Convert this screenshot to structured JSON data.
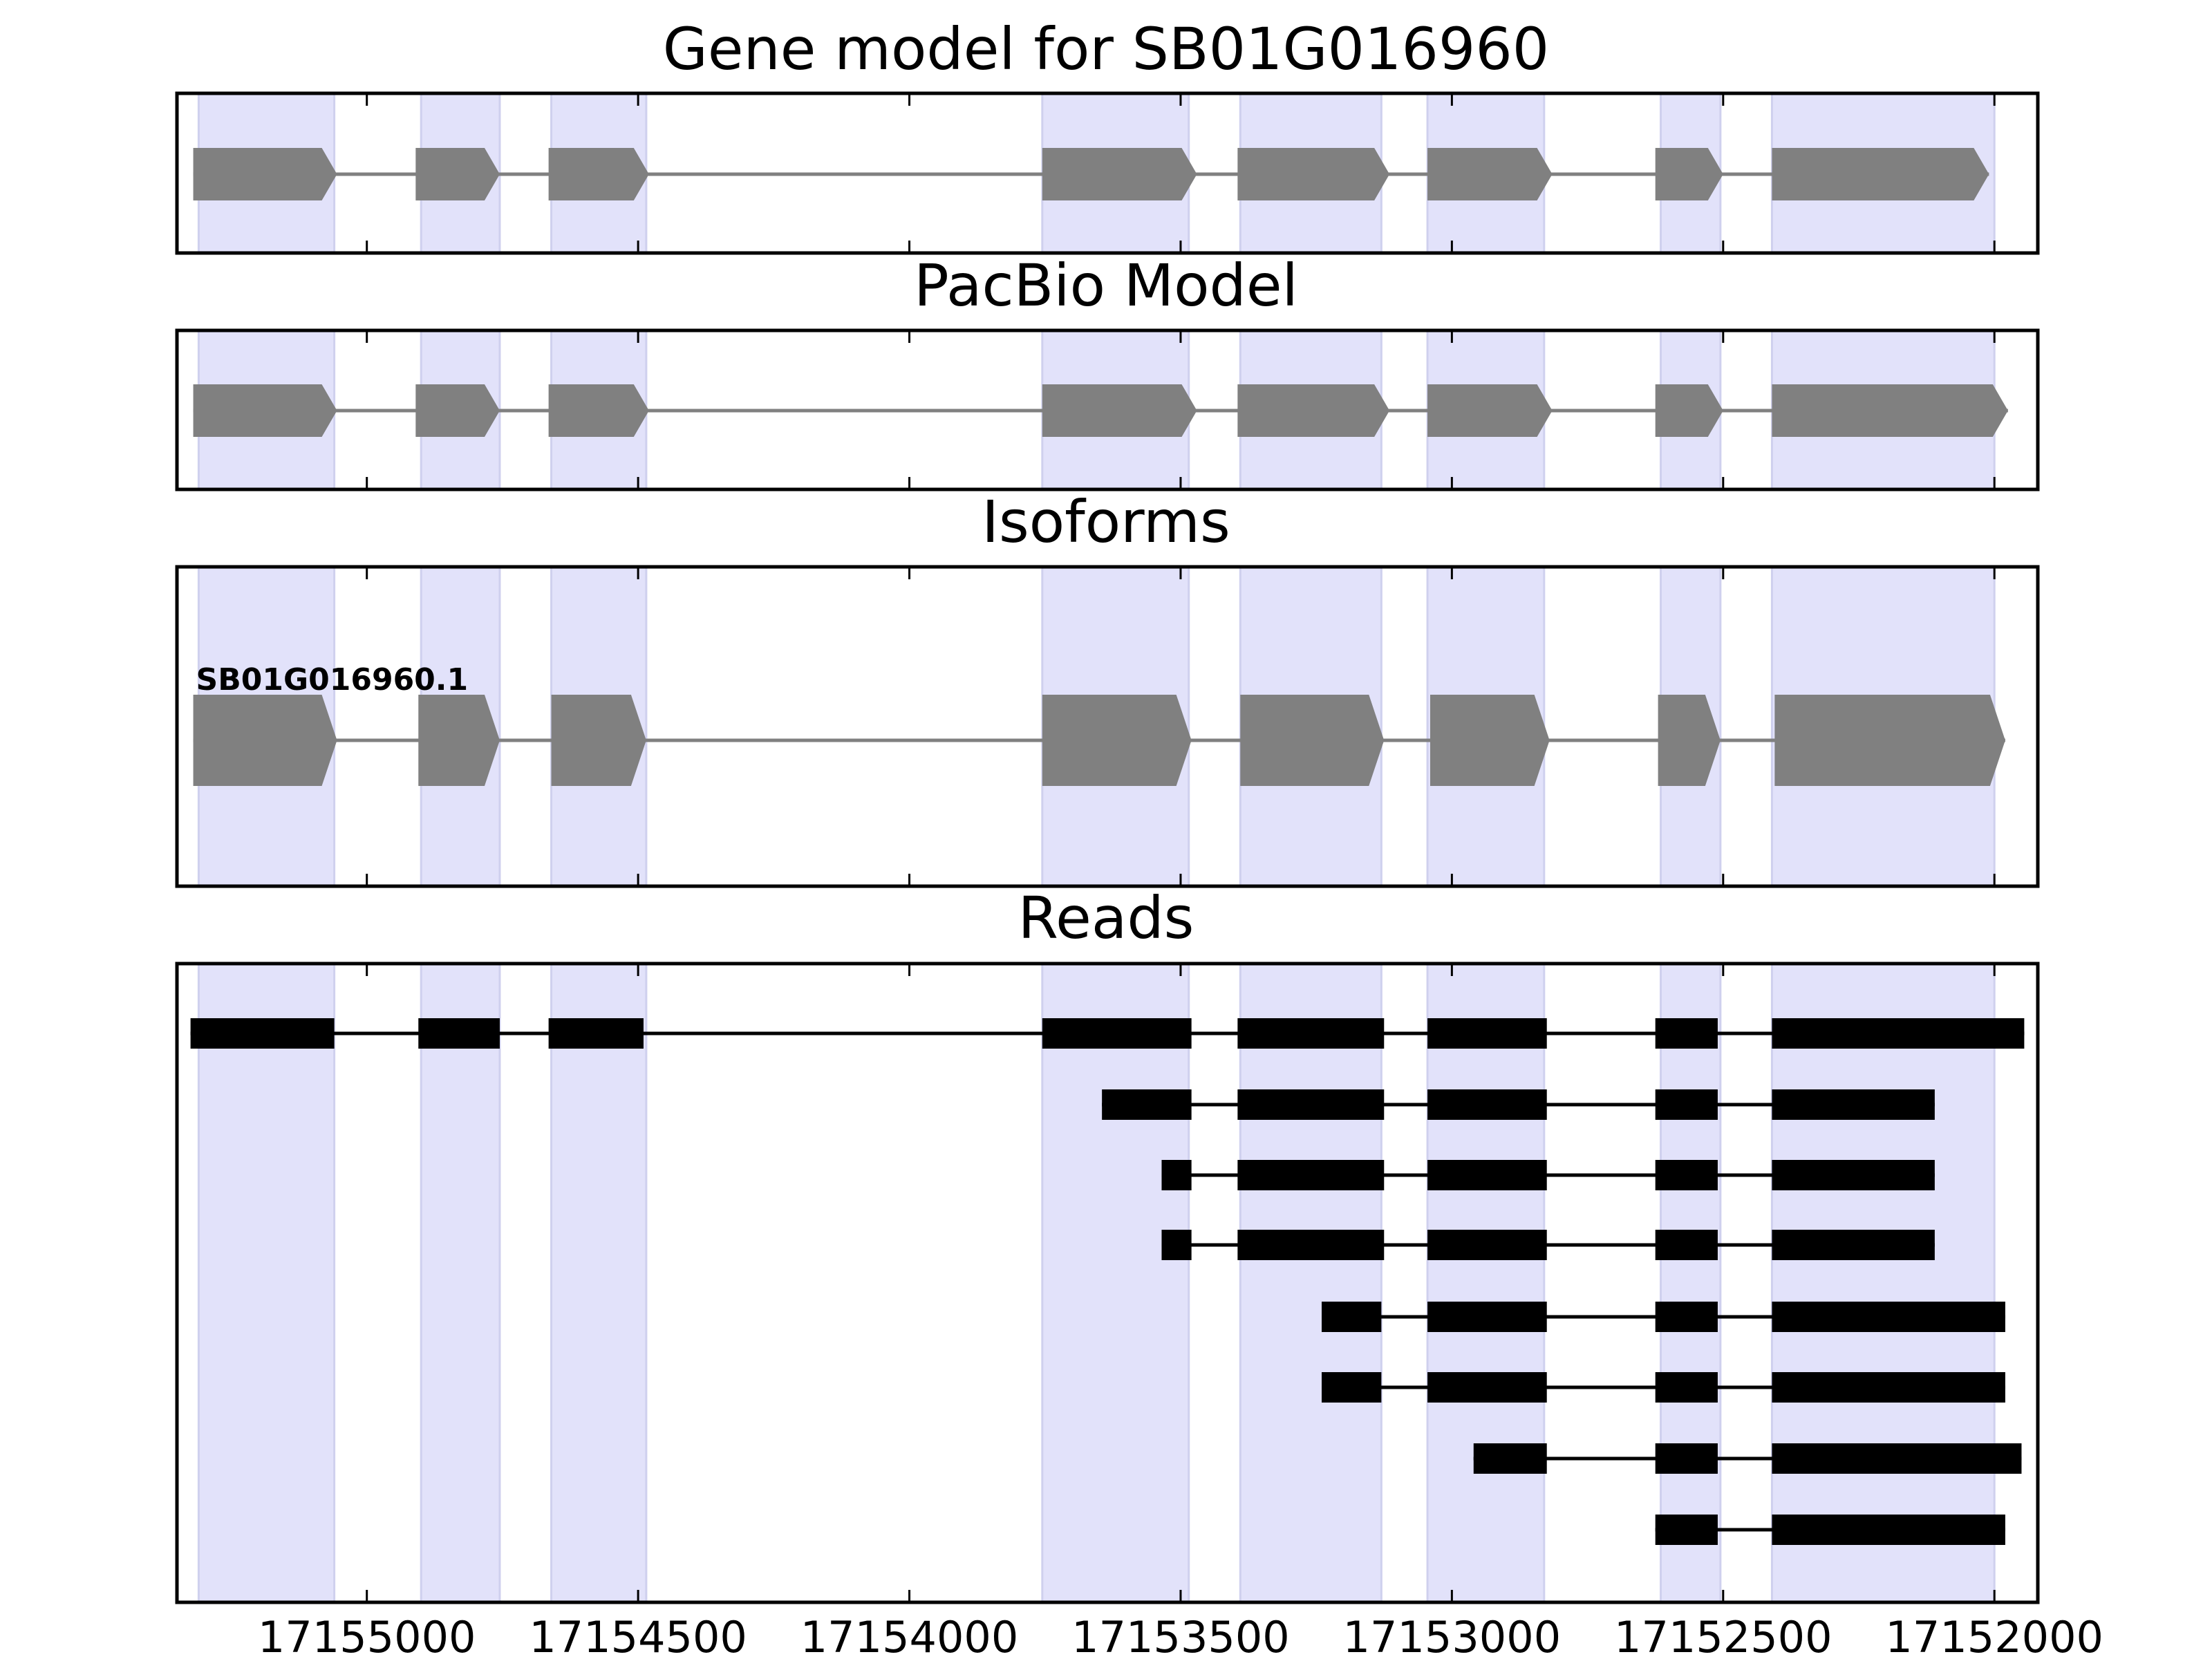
{
  "chart_data": {
    "type": "gene-structure",
    "x_axis": {
      "range": [
        17155350,
        17151920
      ],
      "ticks": [
        17155000,
        17154500,
        17154000,
        17153500,
        17153000,
        17152500,
        17152000
      ],
      "tick_labels": [
        "17155000",
        "17154500",
        "17154000",
        "17153500",
        "17153000",
        "17152500",
        "17152000"
      ],
      "direction": "descending"
    },
    "shaded_regions": [
      [
        17155310,
        17155060
      ],
      [
        17154900,
        17154755
      ],
      [
        17154660,
        17154485
      ],
      [
        17153755,
        17153485
      ],
      [
        17153390,
        17153130
      ],
      [
        17153045,
        17152830
      ],
      [
        17152615,
        17152505
      ],
      [
        17152410,
        17152000
      ]
    ],
    "panels": [
      {
        "title": "Gene model for SB01G016960",
        "kind": "model",
        "color": "#808080",
        "exons": [
          [
            17155320,
            17155055
          ],
          [
            17154910,
            17154755
          ],
          [
            17154665,
            17154480
          ],
          [
            17153755,
            17153470
          ],
          [
            17153395,
            17153115
          ],
          [
            17153045,
            17152815
          ],
          [
            17152625,
            17152500
          ],
          [
            17152410,
            17152010
          ]
        ]
      },
      {
        "title": "PacBio Model",
        "kind": "model",
        "color": "#808080",
        "exons": [
          [
            17155320,
            17155055
          ],
          [
            17154910,
            17154755
          ],
          [
            17154665,
            17154480
          ],
          [
            17153755,
            17153470
          ],
          [
            17153395,
            17153115
          ],
          [
            17153045,
            17152815
          ],
          [
            17152625,
            17152500
          ],
          [
            17152410,
            17151975
          ]
        ]
      },
      {
        "title": "Isoforms",
        "kind": "isoform",
        "color": "#808080",
        "isoform_label": "SB01G016960.1",
        "exons": [
          [
            17155320,
            17155055
          ],
          [
            17154905,
            17154755
          ],
          [
            17154660,
            17154485
          ],
          [
            17153755,
            17153480
          ],
          [
            17153390,
            17153125
          ],
          [
            17153040,
            17152820
          ],
          [
            17152620,
            17152505
          ],
          [
            17152405,
            17151980
          ]
        ]
      },
      {
        "title": "Reads",
        "kind": "reads",
        "color": "#000000",
        "reads": [
          [
            [
              17155325,
              17155060
            ],
            [
              17154905,
              17154755
            ],
            [
              17154665,
              17154490
            ],
            [
              17153755,
              17153480
            ],
            [
              17153395,
              17153125
            ],
            [
              17153045,
              17152825
            ],
            [
              17152625,
              17152510
            ],
            [
              17152410,
              17151945
            ]
          ],
          [
            [
              17153645,
              17153480
            ],
            [
              17153395,
              17153125
            ],
            [
              17153045,
              17152825
            ],
            [
              17152625,
              17152510
            ],
            [
              17152410,
              17152110
            ]
          ],
          [
            [
              17153535,
              17153480
            ],
            [
              17153395,
              17153125
            ],
            [
              17153045,
              17152825
            ],
            [
              17152625,
              17152510
            ],
            [
              17152410,
              17152110
            ]
          ],
          [
            [
              17153535,
              17153480
            ],
            [
              17153395,
              17153125
            ],
            [
              17153045,
              17152825
            ],
            [
              17152625,
              17152510
            ],
            [
              17152410,
              17152110
            ]
          ],
          [
            [
              17153240,
              17153130
            ],
            [
              17153045,
              17152825
            ],
            [
              17152625,
              17152510
            ],
            [
              17152410,
              17151980
            ]
          ],
          [
            [
              17153240,
              17153130
            ],
            [
              17153045,
              17152825
            ],
            [
              17152625,
              17152510
            ],
            [
              17152410,
              17151980
            ]
          ],
          [
            [
              17152960,
              17152825
            ],
            [
              17152625,
              17152510
            ],
            [
              17152410,
              17151950
            ]
          ],
          [
            [
              17152625,
              17152510
            ],
            [
              17152410,
              17151980
            ]
          ]
        ]
      }
    ]
  },
  "colors": {
    "shade": "#e2e2fa",
    "shade_edge": "#cfd0ee",
    "model_fill": "#808080",
    "intron_model": "#808080",
    "read_fill": "#000000",
    "axes": "#000000"
  }
}
